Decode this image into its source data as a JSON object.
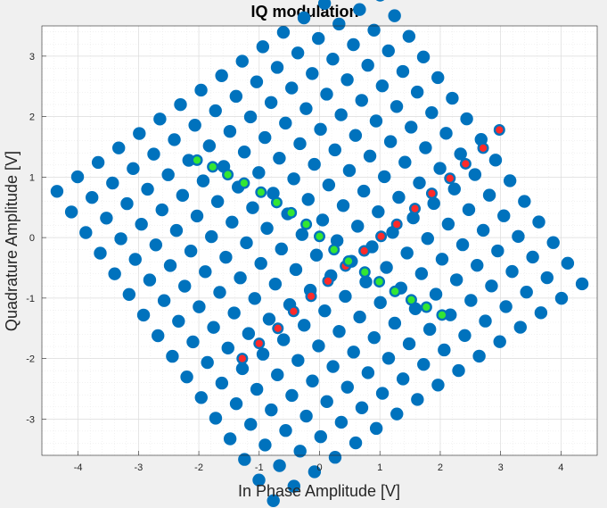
{
  "chart_data": {
    "type": "scatter",
    "title": "IQ modulation",
    "xlabel": "In Phase Amplitude [V]",
    "ylabel": "Quadrature Amplitude [V]",
    "xlim": [
      -4.6,
      4.6
    ],
    "ylim": [
      -3.6,
      3.5
    ],
    "xticks": [
      "-4",
      "-3",
      "-2",
      "-1",
      "0",
      "1",
      "2",
      "3",
      "4"
    ],
    "yticks": [
      "-3",
      "-2",
      "-1",
      "0",
      "1",
      "2",
      "3"
    ],
    "grid": true,
    "minor_grid": true,
    "constellation": {
      "description_grid": "16x16 square lattice rotated ~34 degrees",
      "levels": [
        -15,
        -13,
        -11,
        -9,
        -7,
        -5,
        -3,
        -1,
        1,
        3,
        5,
        7,
        9,
        11,
        13,
        15
      ],
      "basis_u": [
        0.1705,
        0.1195
      ],
      "basis_v": [
        -0.1195,
        0.1705
      ],
      "count": 256
    },
    "series": [
      {
        "color": "#0072BD",
        "edge": "#0072BD",
        "role": "all constellation points"
      },
      {
        "color": "#FF2A2A",
        "edge": "#0072BD",
        "role": "highlighted diagonal",
        "points": [
          [
            -1.28,
            -2.0
          ],
          [
            -1.0,
            -1.75
          ],
          [
            -0.69,
            -1.5
          ],
          [
            -0.43,
            -1.22
          ],
          [
            -0.14,
            -0.97
          ],
          [
            0.14,
            -0.72
          ],
          [
            0.43,
            -0.47
          ],
          [
            0.74,
            -0.22
          ],
          [
            1.02,
            0.02
          ],
          [
            1.28,
            0.22
          ],
          [
            1.58,
            0.48
          ],
          [
            1.86,
            0.73
          ],
          [
            2.16,
            0.98
          ],
          [
            2.42,
            1.22
          ],
          [
            2.71,
            1.48
          ],
          [
            2.98,
            1.78
          ]
        ]
      },
      {
        "color": "#33E633",
        "edge": "#0072BD",
        "role": "highlighted anti-diagonal",
        "points": [
          [
            -2.03,
            1.28
          ],
          [
            -1.77,
            1.17
          ],
          [
            -1.52,
            1.04
          ],
          [
            -1.25,
            0.9
          ],
          [
            -0.97,
            0.75
          ],
          [
            -0.71,
            0.58
          ],
          [
            -0.47,
            0.41
          ],
          [
            -0.22,
            0.22
          ],
          [
            0.0,
            0.02
          ],
          [
            0.24,
            -0.2
          ],
          [
            0.48,
            -0.39
          ],
          [
            0.75,
            -0.57
          ],
          [
            0.99,
            -0.73
          ],
          [
            1.25,
            -0.89
          ],
          [
            1.52,
            -1.03
          ],
          [
            1.77,
            -1.15
          ],
          [
            2.03,
            -1.28
          ]
        ]
      }
    ]
  }
}
